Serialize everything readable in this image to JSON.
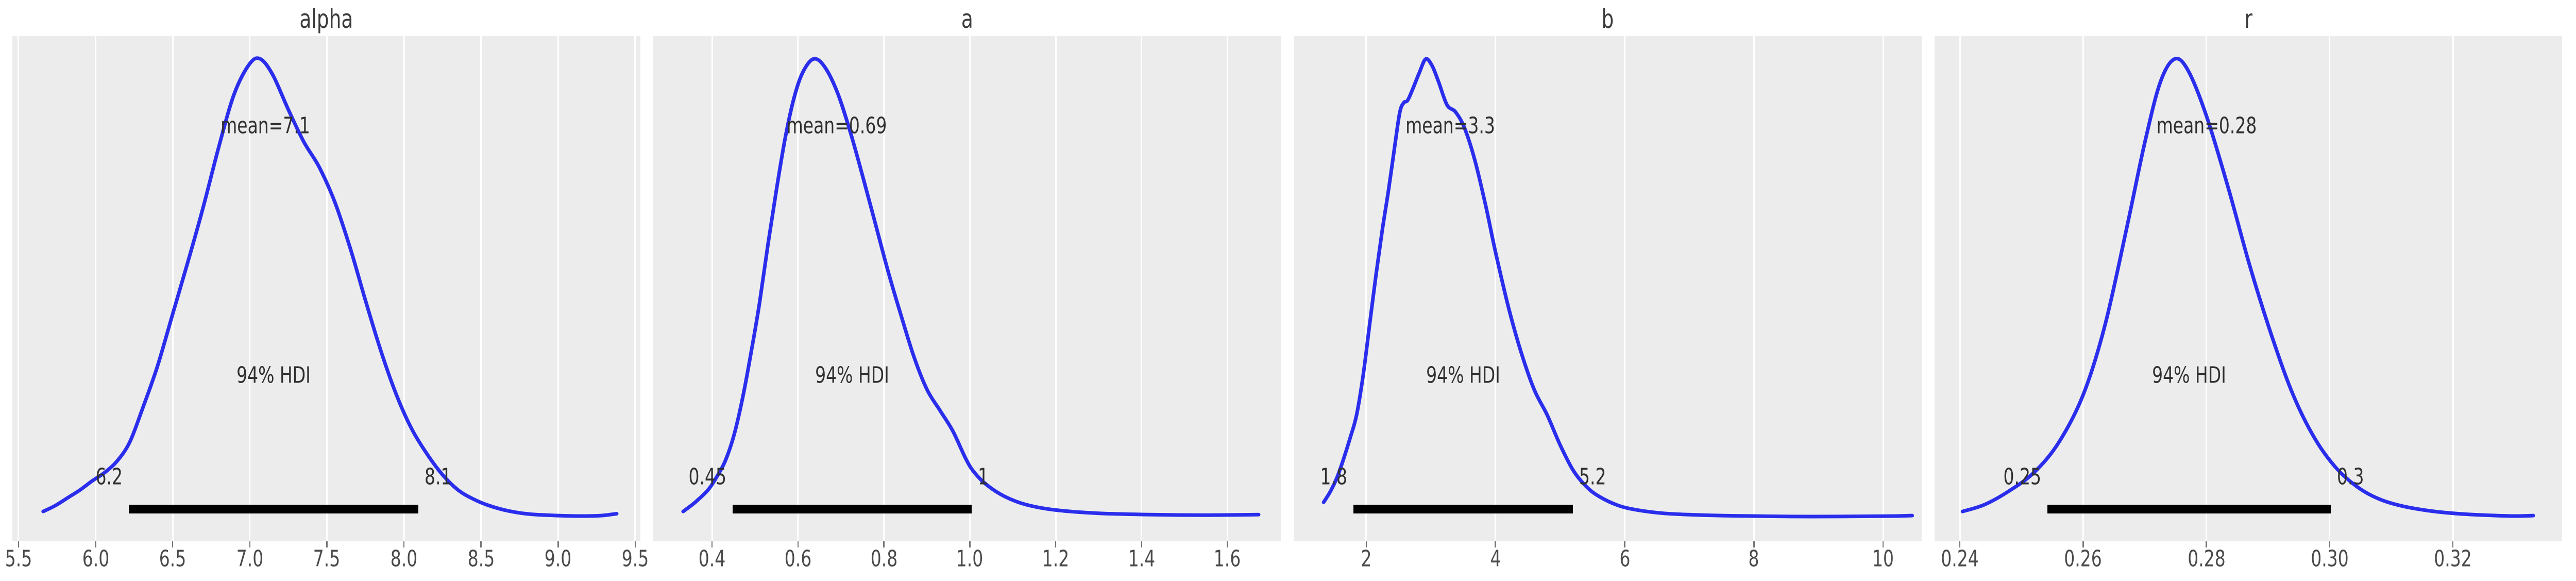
{
  "figure": {
    "background": "#ffffff",
    "panel_background": "#ececec",
    "gridline_color": "#ffffff",
    "curve_color": "#2a2eec",
    "hdi_line_color": "#000000"
  },
  "chart_data": [
    {
      "type": "area",
      "title": "alpha",
      "mean": 7.1,
      "mean_label": "mean=7.1",
      "hdi_text": "94% HDI",
      "hdi": [
        6.214,
        8.092
      ],
      "hdi_labels": [
        "6.2",
        "8.1"
      ],
      "xtick_labels": [
        "5.5",
        "6.0",
        "6.5",
        "7.0",
        "7.5",
        "8.0",
        "8.5",
        "9.0",
        "9.5"
      ],
      "xticks": [
        5.5,
        6.0,
        6.5,
        7.0,
        7.5,
        8.0,
        8.5,
        9.0,
        9.5
      ],
      "xlim": [
        5.46,
        9.533
      ],
      "ylim": [
        -0.05,
        1.05
      ],
      "curve": [
        [
          5.66,
          0.015
        ],
        [
          5.74,
          0.028
        ],
        [
          5.82,
          0.045
        ],
        [
          5.9,
          0.062
        ],
        [
          5.98,
          0.082
        ],
        [
          6.06,
          0.1
        ],
        [
          6.14,
          0.125
        ],
        [
          6.22,
          0.165
        ],
        [
          6.3,
          0.235
        ],
        [
          6.4,
          0.33
        ],
        [
          6.5,
          0.445
        ],
        [
          6.6,
          0.56
        ],
        [
          6.7,
          0.68
        ],
        [
          6.8,
          0.81
        ],
        [
          6.9,
          0.925
        ],
        [
          7.0,
          0.99
        ],
        [
          7.07,
          1.0
        ],
        [
          7.15,
          0.965
        ],
        [
          7.25,
          0.89
        ],
        [
          7.35,
          0.82
        ],
        [
          7.45,
          0.765
        ],
        [
          7.55,
          0.69
        ],
        [
          7.65,
          0.59
        ],
        [
          7.75,
          0.475
        ],
        [
          7.85,
          0.365
        ],
        [
          7.95,
          0.27
        ],
        [
          8.05,
          0.195
        ],
        [
          8.15,
          0.14
        ],
        [
          8.25,
          0.095
        ],
        [
          8.35,
          0.062
        ],
        [
          8.45,
          0.042
        ],
        [
          8.55,
          0.028
        ],
        [
          8.68,
          0.016
        ],
        [
          8.82,
          0.009
        ],
        [
          9.0,
          0.006
        ],
        [
          9.15,
          0.005
        ],
        [
          9.28,
          0.006
        ],
        [
          9.38,
          0.01
        ]
      ]
    },
    {
      "type": "area",
      "title": "a",
      "mean": 0.69,
      "mean_label": "mean=0.69",
      "hdi_text": "94% HDI",
      "hdi": [
        0.4477,
        1.0046
      ],
      "hdi_labels": [
        "0.45",
        "1"
      ],
      "xtick_labels": [
        "0.4",
        "0.6",
        "0.8",
        "1.0",
        "1.2",
        "1.4",
        "1.6"
      ],
      "xticks": [
        0.4,
        0.6,
        0.8,
        1.0,
        1.2,
        1.4,
        1.6
      ],
      "xlim": [
        0.2624,
        1.7245
      ],
      "ylim": [
        -0.05,
        1.05
      ],
      "curve": [
        [
          0.332,
          0.015
        ],
        [
          0.36,
          0.035
        ],
        [
          0.39,
          0.062
        ],
        [
          0.41,
          0.09
        ],
        [
          0.43,
          0.125
        ],
        [
          0.45,
          0.18
        ],
        [
          0.47,
          0.26
        ],
        [
          0.49,
          0.36
        ],
        [
          0.51,
          0.47
        ],
        [
          0.53,
          0.6
        ],
        [
          0.55,
          0.72
        ],
        [
          0.57,
          0.83
        ],
        [
          0.59,
          0.915
        ],
        [
          0.61,
          0.97
        ],
        [
          0.635,
          1.0
        ],
        [
          0.66,
          0.985
        ],
        [
          0.69,
          0.93
        ],
        [
          0.72,
          0.845
        ],
        [
          0.75,
          0.745
        ],
        [
          0.78,
          0.64
        ],
        [
          0.81,
          0.535
        ],
        [
          0.84,
          0.44
        ],
        [
          0.87,
          0.35
        ],
        [
          0.9,
          0.28
        ],
        [
          0.93,
          0.235
        ],
        [
          0.96,
          0.19
        ],
        [
          0.99,
          0.13
        ],
        [
          1.01,
          0.1
        ],
        [
          1.04,
          0.072
        ],
        [
          1.08,
          0.048
        ],
        [
          1.13,
          0.03
        ],
        [
          1.2,
          0.018
        ],
        [
          1.3,
          0.011
        ],
        [
          1.42,
          0.008
        ],
        [
          1.55,
          0.007
        ],
        [
          1.672,
          0.008
        ]
      ]
    },
    {
      "type": "area",
      "title": "b",
      "mean": 3.3,
      "mean_label": "mean=3.3",
      "hdi_text": "94% HDI",
      "hdi": [
        1.8,
        5.2
      ],
      "hdi_labels": [
        "1.8",
        "5.2"
      ],
      "xtick_labels": [
        "2",
        "4",
        "6",
        "8",
        "10"
      ],
      "xticks": [
        2,
        4,
        6,
        8,
        10
      ],
      "xlim": [
        0.876,
        10.595
      ],
      "ylim": [
        -0.05,
        1.05
      ],
      "curve": [
        [
          1.34,
          0.035
        ],
        [
          1.45,
          0.06
        ],
        [
          1.55,
          0.09
        ],
        [
          1.65,
          0.13
        ],
        [
          1.75,
          0.175
        ],
        [
          1.85,
          0.225
        ],
        [
          1.95,
          0.31
        ],
        [
          2.05,
          0.42
        ],
        [
          2.15,
          0.53
        ],
        [
          2.25,
          0.63
        ],
        [
          2.35,
          0.72
        ],
        [
          2.45,
          0.82
        ],
        [
          2.52,
          0.885
        ],
        [
          2.58,
          0.905
        ],
        [
          2.64,
          0.91
        ],
        [
          2.72,
          0.935
        ],
        [
          2.82,
          0.97
        ],
        [
          2.92,
          1.0
        ],
        [
          3.02,
          0.985
        ],
        [
          3.12,
          0.95
        ],
        [
          3.25,
          0.9
        ],
        [
          3.38,
          0.885
        ],
        [
          3.52,
          0.85
        ],
        [
          3.68,
          0.78
        ],
        [
          3.85,
          0.68
        ],
        [
          4.0,
          0.58
        ],
        [
          4.2,
          0.46
        ],
        [
          4.4,
          0.36
        ],
        [
          4.6,
          0.28
        ],
        [
          4.8,
          0.225
        ],
        [
          5.0,
          0.16
        ],
        [
          5.2,
          0.105
        ],
        [
          5.4,
          0.07
        ],
        [
          5.6,
          0.048
        ],
        [
          5.9,
          0.028
        ],
        [
          6.2,
          0.018
        ],
        [
          6.6,
          0.011
        ],
        [
          7.0,
          0.008
        ],
        [
          7.5,
          0.006
        ],
        [
          8.0,
          0.005
        ],
        [
          8.6,
          0.004
        ],
        [
          9.2,
          0.004
        ],
        [
          9.8,
          0.0045
        ],
        [
          10.2,
          0.005
        ],
        [
          10.45,
          0.006
        ]
      ]
    },
    {
      "type": "area",
      "title": "r",
      "mean": 0.28,
      "mean_label": "mean=0.28",
      "hdi_text": "94% HDI",
      "hdi": [
        0.2542,
        0.3002
      ],
      "hdi_labels": [
        "0.25",
        "0.3"
      ],
      "xtick_labels": [
        "0.24",
        "0.26",
        "0.28",
        "0.30",
        "0.32"
      ],
      "xticks": [
        0.24,
        0.26,
        0.28,
        0.3,
        0.32
      ],
      "xlim": [
        0.23586,
        0.33774
      ],
      "ylim": [
        -0.05,
        1.05
      ],
      "curve": [
        [
          0.2404,
          0.015
        ],
        [
          0.244,
          0.03
        ],
        [
          0.248,
          0.06
        ],
        [
          0.252,
          0.1
        ],
        [
          0.256,
          0.165
        ],
        [
          0.26,
          0.27
        ],
        [
          0.2635,
          0.42
        ],
        [
          0.267,
          0.63
        ],
        [
          0.27,
          0.82
        ],
        [
          0.2725,
          0.95
        ],
        [
          0.2748,
          1.0
        ],
        [
          0.277,
          0.975
        ],
        [
          0.28,
          0.875
        ],
        [
          0.2835,
          0.72
        ],
        [
          0.287,
          0.55
        ],
        [
          0.2905,
          0.4
        ],
        [
          0.294,
          0.27
        ],
        [
          0.2975,
          0.175
        ],
        [
          0.301,
          0.11
        ],
        [
          0.3045,
          0.068
        ],
        [
          0.308,
          0.042
        ],
        [
          0.312,
          0.026
        ],
        [
          0.317,
          0.015
        ],
        [
          0.322,
          0.009
        ],
        [
          0.327,
          0.006
        ],
        [
          0.33,
          0.005
        ],
        [
          0.333,
          0.006
        ]
      ]
    }
  ]
}
